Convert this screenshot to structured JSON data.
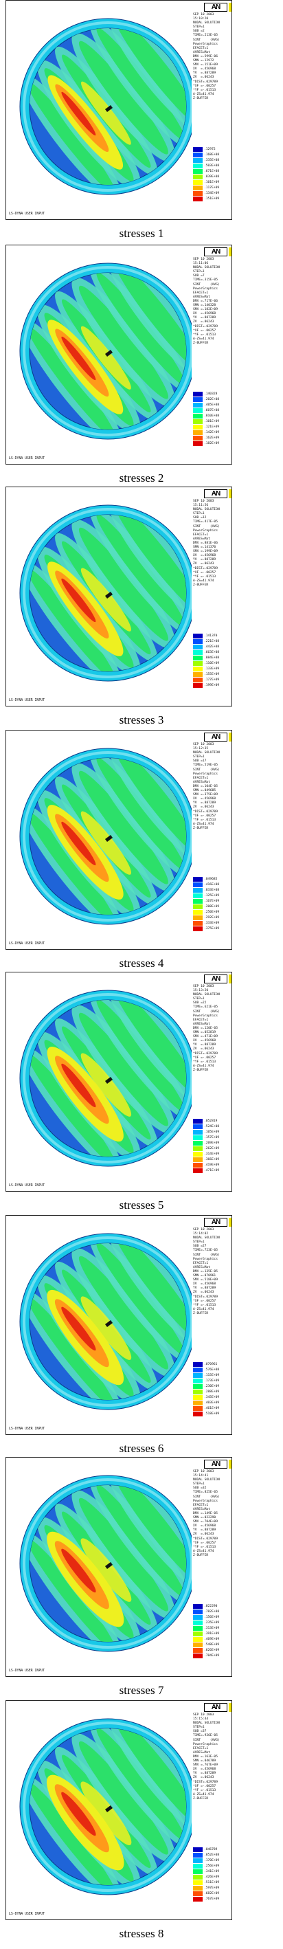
{
  "legend_colors": [
    "#0000c0",
    "#0050ff",
    "#00b4ff",
    "#00ffd8",
    "#00ff60",
    "#a0ff00",
    "#ffff00",
    "#ffb000",
    "#ff5000",
    "#e00000"
  ],
  "plot_colors": {
    "background_blue": "#1f64d8",
    "rim_cyan": "#18c8e8",
    "rim_light": "#6ee0f0",
    "band_light": "#55e0c0",
    "green": "#2ce06a",
    "yellow": "#eef020",
    "orange": "#ff9a1a",
    "red": "#e62a10"
  },
  "figures": [
    {
      "caption": "stresses 1",
      "logo": "AN",
      "info": [
        "SEP 10 2003",
        "15:10:20",
        "NODAL SOLUTION",
        "STEP=1",
        "SUB =2",
        "TIME=.213E-05",
        "SINT     (AVG)",
        "PowerGraphics",
        "EFACET=1",
        "AVRES=Mat",
        "DMX =.599E-06",
        "SMN =.12972",
        "SMX =.151E+09",
        "",
        "XV  =.456968",
        "YV  =.887289",
        "ZV  =.06243",
        "*DIST=.029789",
        "*XF =-.00257",
        "*YF =-.01513",
        "A-ZS=41.974",
        "Z-BUFFER"
      ],
      "legend": [
        ".12972",
        ".168E+08",
        ".335E+08",
        ".503E+08",
        ".671E+08",
        ".839E+08",
        ".101E+09",
        ".117E+09",
        ".134E+09",
        ".151E+09"
      ],
      "footer": "LS-DYNA USER INPUT"
    },
    {
      "caption": "stresses 2",
      "logo": "AN",
      "info": [
        "SEP 10 2003",
        "15:11:06",
        "NODAL SOLUTION",
        "STEP=1",
        "SUB =7",
        "TIME=.315E-05",
        "SINT     (AVG)",
        "PowerGraphics",
        "EFACET=1",
        "AVRES=Mat",
        "DMX =.717E-06",
        "SMN =.140328",
        "SMX =.182E+09",
        "",
        "XV  =.456968",
        "YV  =.887289",
        "ZV  =.06243",
        "*DIST=.029789",
        "*XF =-.00257",
        "*YF =-.01513",
        "A-ZS=41.974",
        "Z-BUFFER"
      ],
      "legend": [
        ".140328",
        ".202E+08",
        ".405E+08",
        ".607E+08",
        ".810E+08",
        ".101E+09",
        ".121E+09",
        ".142E+09",
        ".162E+09",
        ".182E+09"
      ],
      "footer": "LS-DYNA USER INPUT"
    },
    {
      "caption": "stresses 3",
      "logo": "AN",
      "info": [
        "SEP 10 2003",
        "15:11:56",
        "NODAL SOLUTION",
        "STEP=1",
        "SUB =12",
        "TIME=.417E-05",
        "SINT     (AVG)",
        "PowerGraphics",
        "EFACET=1",
        "AVRES=Mat",
        "DMX =.881E-06",
        "SMN =.141370",
        "SMX =.199E+09",
        "",
        "XV  =.456968",
        "YV  =.887289",
        "ZV  =.06243",
        "*DIST=.029789",
        "*XF =-.00257",
        "*YF =-.01513",
        "A-ZS=41.974",
        "Z-BUFFER"
      ],
      "legend": [
        ".141370",
        ".221E+08",
        ".442E+08",
        ".663E+08",
        ".884E+08",
        ".110E+09",
        ".133E+09",
        ".155E+09",
        ".177E+09",
        ".199E+09"
      ],
      "footer": "LS-DYNA USER INPUT"
    },
    {
      "caption": "stresses 4",
      "logo": "AN",
      "info": [
        "SEP 10 2003",
        "15:12:35",
        "NODAL SOLUTION",
        "STEP=1",
        "SUB =17",
        "TIME=.519E-05",
        "SINT     (AVG)",
        "PowerGraphics",
        "EFACET=1",
        "AVRES=Mat",
        "DMX =.104E-05",
        "SMN =.049685",
        "SMX =.375E+09",
        "",
        "XV  =.456968",
        "YV  =.887289",
        "ZV  =.06243",
        "*DIST=.029789",
        "*XF =-.00257",
        "*YF =-.01513",
        "A-ZS=41.974",
        "Z-BUFFER"
      ],
      "legend": [
        ".049685",
        ".416E+08",
        ".833E+08",
        ".125E+09",
        ".167E+09",
        ".208E+09",
        ".250E+09",
        ".292E+09",
        ".333E+09",
        ".375E+09"
      ],
      "footer": "LS-DYNA USER INPUT"
    },
    {
      "caption": "stresses 5",
      "logo": "AN",
      "info": [
        "SEP 10 2003",
        "15:13:20",
        "NODAL SOLUTION",
        "STEP=1",
        "SUB =22",
        "TIME=.621E-05",
        "SINT     (AVG)",
        "PowerGraphics",
        "EFACET=1",
        "AVRES=Mat",
        "DMX =.120E-05",
        "SMN =.052819",
        "SMX =.471E+09",
        "",
        "XV  =.456968",
        "YV  =.887289",
        "ZV  =.06243",
        "*DIST=.029789",
        "*XF =-.00257",
        "*YF =-.01513",
        "A-ZS=41.974",
        "Z-BUFFER"
      ],
      "legend": [
        ".052819",
        ".524E+08",
        ".105E+09",
        ".157E+09",
        ".209E+09",
        ".262E+09",
        ".314E+09",
        ".366E+09",
        ".419E+09",
        ".471E+09"
      ],
      "footer": "LS-DYNA USER INPUT"
    },
    {
      "caption": "stresses 6",
      "logo": "AN",
      "info": [
        "SEP 10 2003",
        "15:14:02",
        "NODAL SOLUTION",
        "STEP=1",
        "SUB =27",
        "TIME=.723E-05",
        "SINT     (AVG)",
        "PowerGraphics",
        "EFACET=1",
        "AVRES=Mat",
        "DMX =.135E-05",
        "SMN =.070961",
        "SMX =.518E+09",
        "",
        "XV  =.456968",
        "YV  =.887289",
        "ZV  =.06243",
        "*DIST=.029789",
        "*XF =-.00257",
        "*YF =-.01513",
        "A-ZS=41.974",
        "Z-BUFFER"
      ],
      "legend": [
        ".070961",
        ".576E+08",
        ".115E+09",
        ".173E+09",
        ".230E+09",
        ".288E+09",
        ".345E+09",
        ".403E+09",
        ".461E+09",
        ".518E+09"
      ],
      "footer": "LS-DYNA USER INPUT"
    },
    {
      "caption": "stresses 7",
      "logo": "AN",
      "info": [
        "SEP 10 2003",
        "15:14:41",
        "NODAL SOLUTION",
        "STEP=1",
        "SUB =32",
        "TIME=.825E-05",
        "SINT     (AVG)",
        "PowerGraphics",
        "EFACET=1",
        "AVRES=Mat",
        "DMX =.149E-05",
        "SMN =.022290",
        "SMX =.704E+09",
        "",
        "XV  =.456968",
        "YV  =.887289",
        "ZV  =.06243",
        "*DIST=.029789",
        "*XF =-.00257",
        "*YF =-.01513",
        "A-ZS=41.974",
        "Z-BUFFER"
      ],
      "legend": [
        ".022290",
        ".782E+08",
        ".156E+09",
        ".235E+09",
        ".313E+09",
        ".391E+09",
        ".469E+09",
        ".548E+09",
        ".626E+09",
        ".704E+09"
      ],
      "footer": "LS-DYNA USER INPUT"
    },
    {
      "caption": "stresses 8",
      "logo": "AN",
      "info": [
        "SEP 10 2003",
        "15:15:44",
        "NODAL SOLUTION",
        "STEP=1",
        "SUB =37",
        "TIME=.926E-05",
        "SINT     (AVG)",
        "PowerGraphics",
        "EFACET=1",
        "AVRES=Mat",
        "DMX =.163E-05",
        "SMN =.046789",
        "SMX =.767E+09",
        "",
        "XV  =.456968",
        "YV  =.887289",
        "ZV  =.06243",
        "*DIST=.029789",
        "*XF =-.00257",
        "*YF =-.01513",
        "A-ZS=41.974",
        "Z-BUFFER"
      ],
      "legend": [
        ".046789",
        ".852E+08",
        ".170E+09",
        ".256E+09",
        ".341E+09",
        ".426E+09",
        ".511E+09",
        ".597E+09",
        ".682E+09",
        ".767E+09"
      ],
      "footer": "LS-DYNA USER INPUT"
    }
  ]
}
